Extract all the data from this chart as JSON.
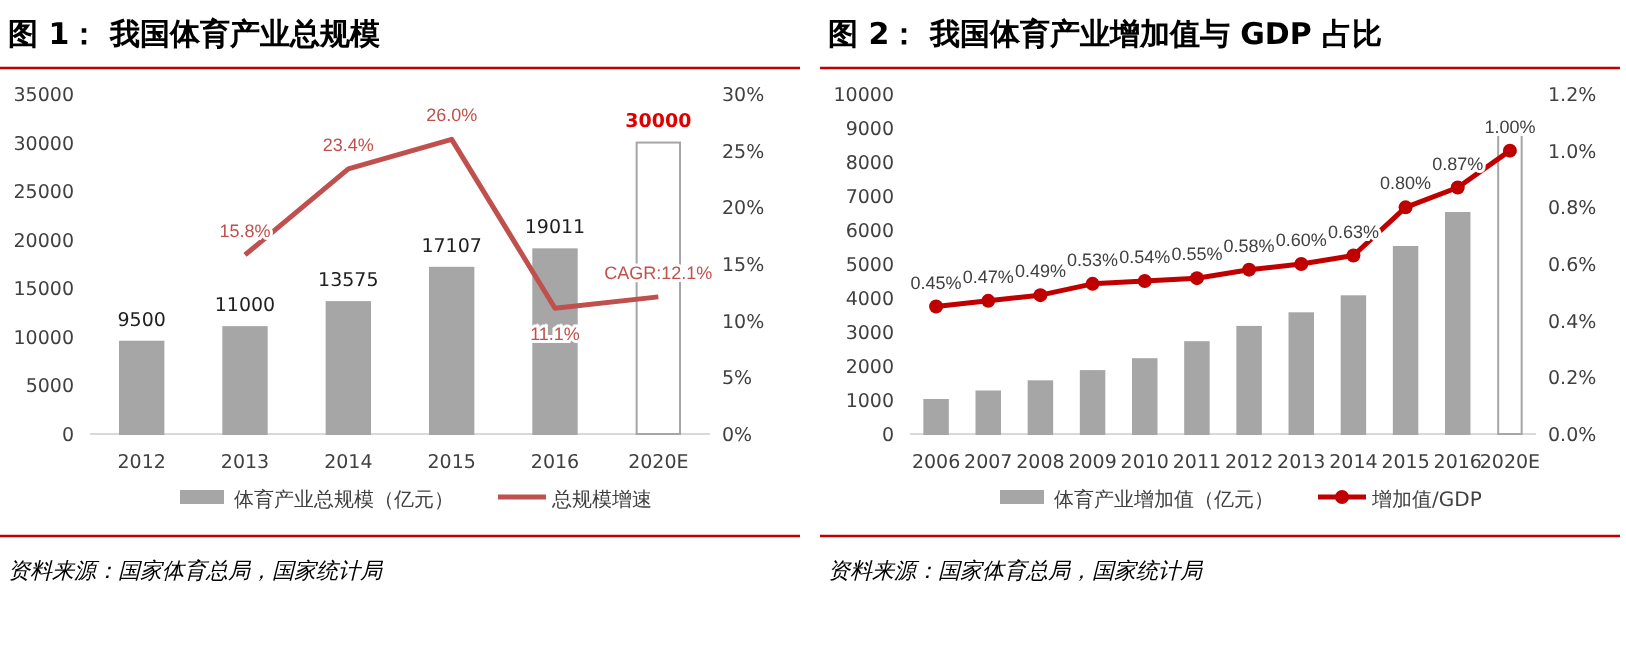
{
  "chart_data": [
    {
      "type": "bar",
      "title": "图 1：  我国体育产业总规模",
      "categories": [
        "2012",
        "2013",
        "2014",
        "2015",
        "2016",
        "2020E"
      ],
      "series": [
        {
          "name": "体育产业总规模（亿元）",
          "colors": [
            "#a6a6a6",
            "#a6a6a6",
            "#a6a6a6",
            "#a6a6a6",
            "#a6a6a6",
            "#ffffff"
          ],
          "values": [
            9500,
            11000,
            13575,
            17107,
            19011,
            30000
          ]
        },
        {
          "name": "总规模增速",
          "type": "line",
          "axis": "y2",
          "color": "#c0504d",
          "values": [
            null,
            15.8,
            23.4,
            26.0,
            11.1,
            12.1
          ],
          "value_labels": [
            null,
            "15.8%",
            "23.4%",
            "26.0%",
            "11.1%",
            "CAGR:12.1%"
          ]
        }
      ],
      "data_labels": true,
      "ylim": [
        0,
        35000
      ],
      "yticks": [
        0,
        5000,
        10000,
        15000,
        20000,
        25000,
        30000,
        35000
      ],
      "y2lim": [
        0,
        30
      ],
      "y2ticks": [
        {
          "value": 0,
          "label": "0%"
        },
        {
          "value": 5,
          "label": "5%"
        },
        {
          "value": 10,
          "label": "10%"
        },
        {
          "value": 15,
          "label": "15%"
        },
        {
          "value": 20,
          "label": "20%"
        },
        {
          "value": 25,
          "label": "25%"
        },
        {
          "value": 30,
          "label": "30%"
        }
      ],
      "legend": "bottom",
      "marker": "none",
      "annotations": [
        "资料来源：国家体育总局，国家统计局"
      ]
    },
    {
      "type": "bar",
      "title": "图 2：  我国体育产业增加值与 GDP 占比",
      "categories": [
        "2006",
        "2007",
        "2008",
        "2009",
        "2010",
        "2011",
        "2012",
        "2013",
        "2014",
        "2015",
        "2016",
        "2020E"
      ],
      "series": [
        {
          "name": "体育产业增加值（亿元）",
          "colors": [
            "#a6a6a6",
            "#a6a6a6",
            "#a6a6a6",
            "#a6a6a6",
            "#a6a6a6",
            "#a6a6a6",
            "#a6a6a6",
            "#a6a6a6",
            "#a6a6a6",
            "#a6a6a6",
            "#a6a6a6",
            "#ffffff"
          ],
          "values": [
            1000,
            1250,
            1550,
            1850,
            2200,
            2700,
            3150,
            3550,
            4050,
            5500,
            6500,
            9100
          ]
        },
        {
          "name": "增加值/GDP",
          "type": "line",
          "axis": "y2",
          "color": "#c00000",
          "values": [
            0.45,
            0.47,
            0.49,
            0.53,
            0.54,
            0.55,
            0.58,
            0.6,
            0.63,
            0.8,
            0.87,
            1.0
          ],
          "value_labels": [
            "0.45%",
            "0.47%",
            "0.49%",
            "0.53%",
            "0.54%",
            "0.55%",
            "0.58%",
            "0.60%",
            "0.63%",
            "0.80%",
            "0.87%",
            "1.00%"
          ]
        }
      ],
      "ylim": [
        0,
        10000
      ],
      "yticks": [
        0,
        1000,
        2000,
        3000,
        4000,
        5000,
        6000,
        7000,
        8000,
        9000,
        10000
      ],
      "y2lim": [
        0,
        1.2
      ],
      "y2ticks": [
        {
          "value": 0,
          "label": "0.0%"
        },
        {
          "value": 0.2,
          "label": "0.2%"
        },
        {
          "value": 0.4,
          "label": "0.4%"
        },
        {
          "value": 0.6,
          "label": "0.6%"
        },
        {
          "value": 0.8,
          "label": "0.8%"
        },
        {
          "value": 1.0,
          "label": "1.0%"
        },
        {
          "value": 1.2,
          "label": "1.2%"
        }
      ],
      "legend": "bottom",
      "marker": "circle",
      "annotations": [
        "资料来源：国家体育总局，国家统计局"
      ]
    }
  ]
}
